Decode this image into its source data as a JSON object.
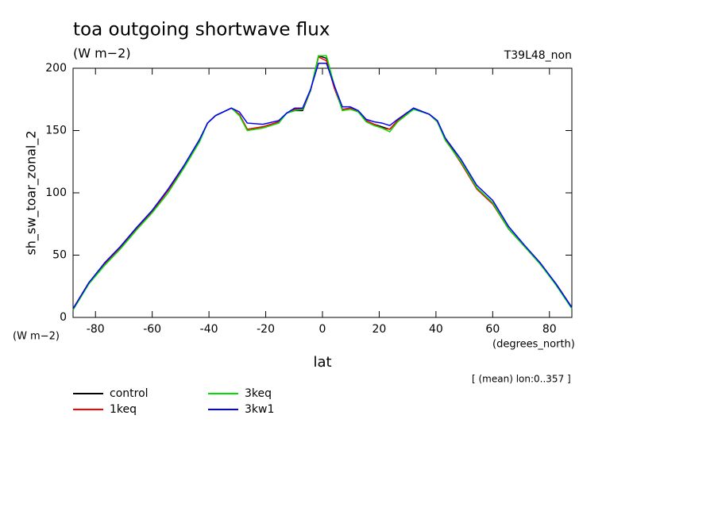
{
  "chart_data": {
    "type": "line",
    "title": "toa outgoing shortwave flux",
    "subtitle": "(W m−2)",
    "run_label": "T39L48_non",
    "y_label": "sh_sw_toar_zonal_2",
    "y_units": "(W m−2)",
    "x_label": "lat",
    "x_units": "(degrees_north)",
    "footnote": "[ (mean) lon:0..357 ]",
    "x": [
      -87.9,
      -82.3,
      -76.7,
      -71.2,
      -65.6,
      -60.0,
      -54.4,
      -48.8,
      -43.3,
      -40.5,
      -37.7,
      -32.1,
      -29.3,
      -26.5,
      -21.0,
      -15.4,
      -12.6,
      -9.8,
      -7.0,
      -4.2,
      -1.4,
      1.4,
      4.2,
      7.0,
      9.8,
      12.6,
      15.4,
      18.2,
      21.0,
      23.7,
      26.5,
      32.1,
      37.7,
      40.5,
      43.3,
      48.8,
      54.4,
      60.0,
      65.6,
      71.2,
      76.7,
      82.3,
      87.9
    ],
    "series": [
      {
        "name": "control",
        "color": "#000000",
        "values": [
          7,
          28,
          43,
          56,
          71,
          85,
          102,
          121,
          142,
          156,
          162,
          168,
          163,
          151,
          153,
          157,
          164,
          166,
          166,
          182,
          210,
          208,
          184,
          167,
          168,
          165,
          158,
          155,
          153,
          151,
          158,
          168,
          163,
          157,
          143,
          125,
          104,
          92,
          71,
          57,
          43,
          27,
          8
        ]
      },
      {
        "name": "1keq",
        "color": "#ff0000",
        "values": [
          7,
          28,
          43,
          56,
          71,
          85,
          102,
          121,
          142,
          156,
          162,
          168,
          163,
          151,
          153,
          157,
          164,
          167,
          167,
          182,
          209,
          206,
          184,
          167,
          168,
          165,
          158,
          155,
          152,
          151,
          158,
          168,
          163,
          157,
          143,
          124,
          103,
          91,
          71,
          57,
          43,
          27,
          8
        ]
      },
      {
        "name": "3keq",
        "color": "#00dd00",
        "values": [
          6,
          27,
          42,
          55,
          70,
          84,
          100,
          120,
          141,
          156,
          162,
          168,
          162,
          150,
          152,
          156,
          164,
          166,
          167,
          182,
          210,
          210,
          186,
          166,
          167,
          165,
          157,
          154,
          152,
          149,
          157,
          167,
          163,
          157,
          142,
          125,
          104,
          92,
          71,
          57,
          43,
          26,
          7
        ]
      },
      {
        "name": "3kw1",
        "color": "#0000ff",
        "values": [
          7,
          28,
          44,
          57,
          72,
          86,
          103,
          122,
          143,
          156,
          162,
          168,
          165,
          156,
          155,
          158,
          164,
          168,
          168,
          183,
          204,
          204,
          186,
          169,
          169,
          166,
          159,
          157,
          156,
          154,
          159,
          168,
          163,
          158,
          144,
          127,
          106,
          94,
          73,
          58,
          44,
          27,
          8
        ]
      }
    ],
    "xlim": [
      -87.9,
      87.9
    ],
    "xticks": [
      -80,
      -60,
      -40,
      -20,
      0,
      20,
      40,
      60,
      80
    ],
    "ylim": [
      0,
      200
    ],
    "yticks": [
      0,
      50,
      100,
      150,
      200
    ]
  }
}
